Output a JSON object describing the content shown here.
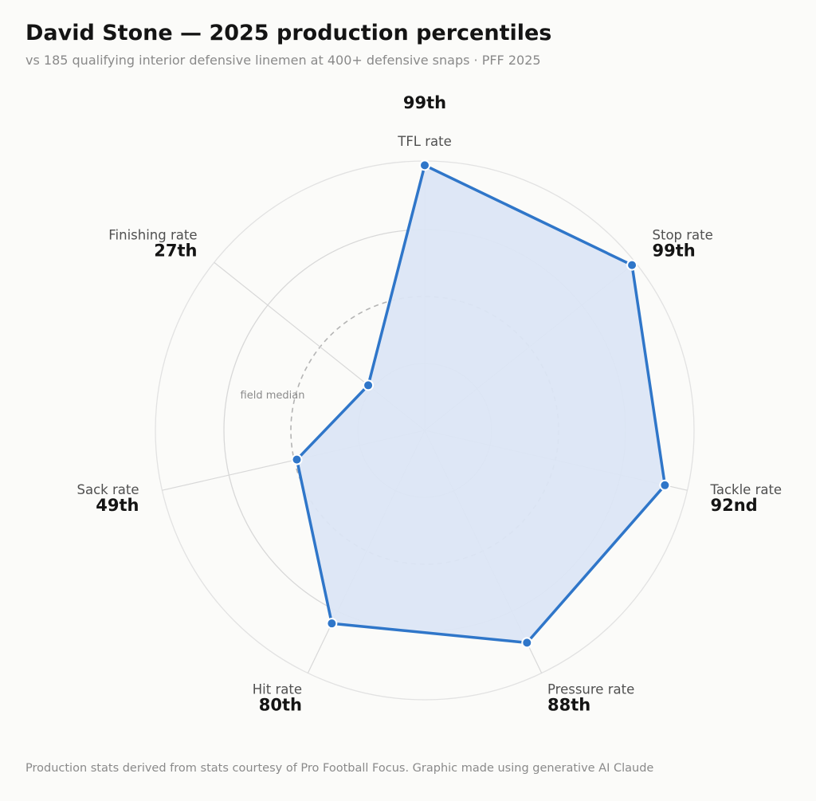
{
  "header": {
    "title": "David Stone — 2025 production percentiles",
    "subtitle": "vs 185 qualifying interior defensive linemen at 400+ defensive snaps  ·  PFF 2025"
  },
  "footer": {
    "credit": "Production stats derived from stats courtesy of Pro Football Focus. Graphic made using generative AI Claude"
  },
  "colors": {
    "series": "#2f76c9",
    "fill": "#dce6f6",
    "grid": "#d8d8d8",
    "median": "#b4b4b4"
  },
  "chart_data": {
    "type": "radar",
    "scale": [
      0,
      100
    ],
    "rings": [
      25,
      50,
      75,
      100
    ],
    "reference_ring": {
      "value": 50,
      "label": "field median",
      "style": "dashed"
    },
    "axes": [
      {
        "label": "TFL rate",
        "value": 99,
        "value_label": "99th"
      },
      {
        "label": "Stop rate",
        "value": 99,
        "value_label": "99th"
      },
      {
        "label": "Tackle rate",
        "value": 92,
        "value_label": "92nd"
      },
      {
        "label": "Pressure rate",
        "value": 88,
        "value_label": "88th"
      },
      {
        "label": "Hit rate",
        "value": 80,
        "value_label": "80th"
      },
      {
        "label": "Sack rate",
        "value": 49,
        "value_label": "49th"
      },
      {
        "label": "Finishing rate",
        "value": 27,
        "value_label": "27th"
      }
    ]
  }
}
